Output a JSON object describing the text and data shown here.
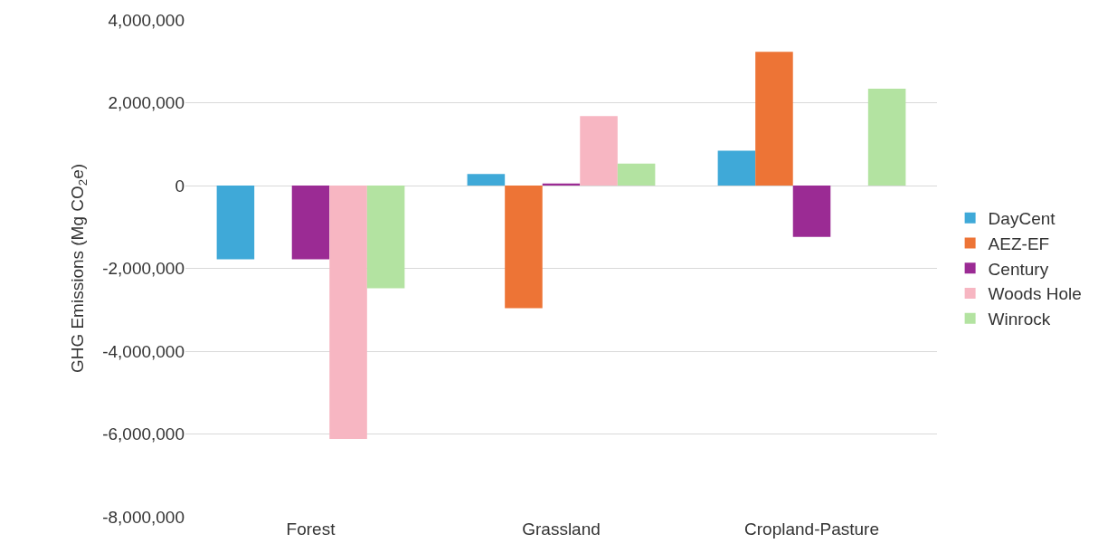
{
  "chart_data": {
    "type": "bar",
    "ylabel": "GHG Emissions (Mg CO$_{2}$e)",
    "categories": [
      "Forest",
      "Grassland",
      "Cropland-Pasture"
    ],
    "series": [
      {
        "name": "DayCent",
        "color": "#3fa9d8",
        "values": [
          -1780000,
          280000,
          840000
        ]
      },
      {
        "name": "AEZ-EF",
        "color": "#ed7436",
        "values": [
          null,
          -2960000,
          3230000
        ]
      },
      {
        "name": "Century",
        "color": "#9b2b94",
        "values": [
          -1780000,
          50000,
          -1240000
        ]
      },
      {
        "name": "Woods Hole",
        "color": "#f7b6c2",
        "values": [
          -6120000,
          1680000,
          null
        ]
      },
      {
        "name": "Winrock",
        "color": "#b3e3a1",
        "values": [
          -2480000,
          530000,
          2340000
        ]
      }
    ],
    "ylim": [
      -8000000,
      4000000
    ],
    "yticks": [
      {
        "value": -8000000,
        "label": "-8,000,000"
      },
      {
        "value": -6000000,
        "label": "-6,000,000"
      },
      {
        "value": -4000000,
        "label": "-4,000,000"
      },
      {
        "value": -2000000,
        "label": "-2,000,000"
      },
      0,
      {
        "value": 2000000,
        "label": "2,000,000"
      },
      {
        "value": 4000000,
        "label": "4,000,000"
      }
    ],
    "grid": "y",
    "legend": "right"
  }
}
